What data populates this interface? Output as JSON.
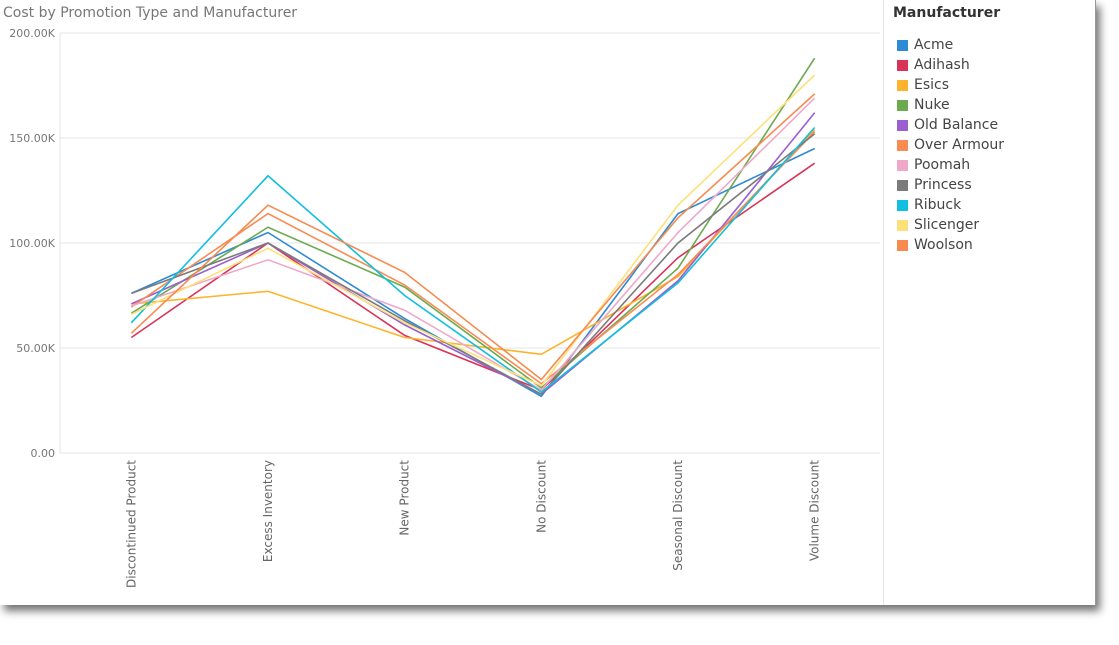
{
  "chart_data": {
    "type": "line",
    "title": "Cost by Promotion Type and Manufacturer",
    "xlabel": "",
    "ylabel": "",
    "categories": [
      "Discontinued Product",
      "Excess Inventory",
      "New Product",
      "No Discount",
      "Seasonal Discount",
      "Volume Discount"
    ],
    "ylim": [
      0,
      200000
    ],
    "yticks": [
      0,
      50000,
      100000,
      150000,
      200000
    ],
    "ytick_labels": [
      "0.00",
      "50.00K",
      "100.00K",
      "150.00K",
      "200.00K"
    ],
    "grid": true,
    "legend_title": "Manufacturer",
    "legend_position": "right",
    "series": [
      {
        "name": "Acme",
        "color": "#2D8BD6",
        "values": [
          76000,
          105000,
          64000,
          27000,
          114000,
          145000
        ]
      },
      {
        "name": "Adihash",
        "color": "#D9335A",
        "values": [
          55000,
          100000,
          56000,
          30000,
          93000,
          138000
        ]
      },
      {
        "name": "Esics",
        "color": "#FDB32B",
        "values": [
          71000,
          77000,
          55000,
          47000,
          84000,
          154000
        ]
      },
      {
        "name": "Nuke",
        "color": "#6BAA4F",
        "values": [
          66500,
          107500,
          79000,
          31000,
          88000,
          188000
        ]
      },
      {
        "name": "Old Balance",
        "color": "#9B5FD0",
        "values": [
          71000,
          100000,
          61000,
          28000,
          82000,
          162000
        ]
      },
      {
        "name": "Over Armour",
        "color": "#F98B53",
        "values": [
          69500,
          114000,
          80000,
          33000,
          85000,
          153000
        ]
      },
      {
        "name": "Poomah",
        "color": "#EFA8C8",
        "values": [
          70000,
          92000,
          68000,
          30000,
          105000,
          169000
        ]
      },
      {
        "name": "Princess",
        "color": "#7B7B7B",
        "values": [
          76000,
          100000,
          63000,
          28000,
          100000,
          152000
        ]
      },
      {
        "name": "Ribuck",
        "color": "#11BFDE",
        "values": [
          62000,
          132000,
          75000,
          29000,
          81000,
          155000
        ]
      },
      {
        "name": "Slicenger",
        "color": "#FDE07A",
        "values": [
          66000,
          97500,
          62000,
          32000,
          118000,
          180000
        ]
      },
      {
        "name": "Woolson",
        "color": "#F78A4F",
        "values": [
          57000,
          118000,
          86000,
          35000,
          112000,
          171000
        ]
      }
    ]
  }
}
